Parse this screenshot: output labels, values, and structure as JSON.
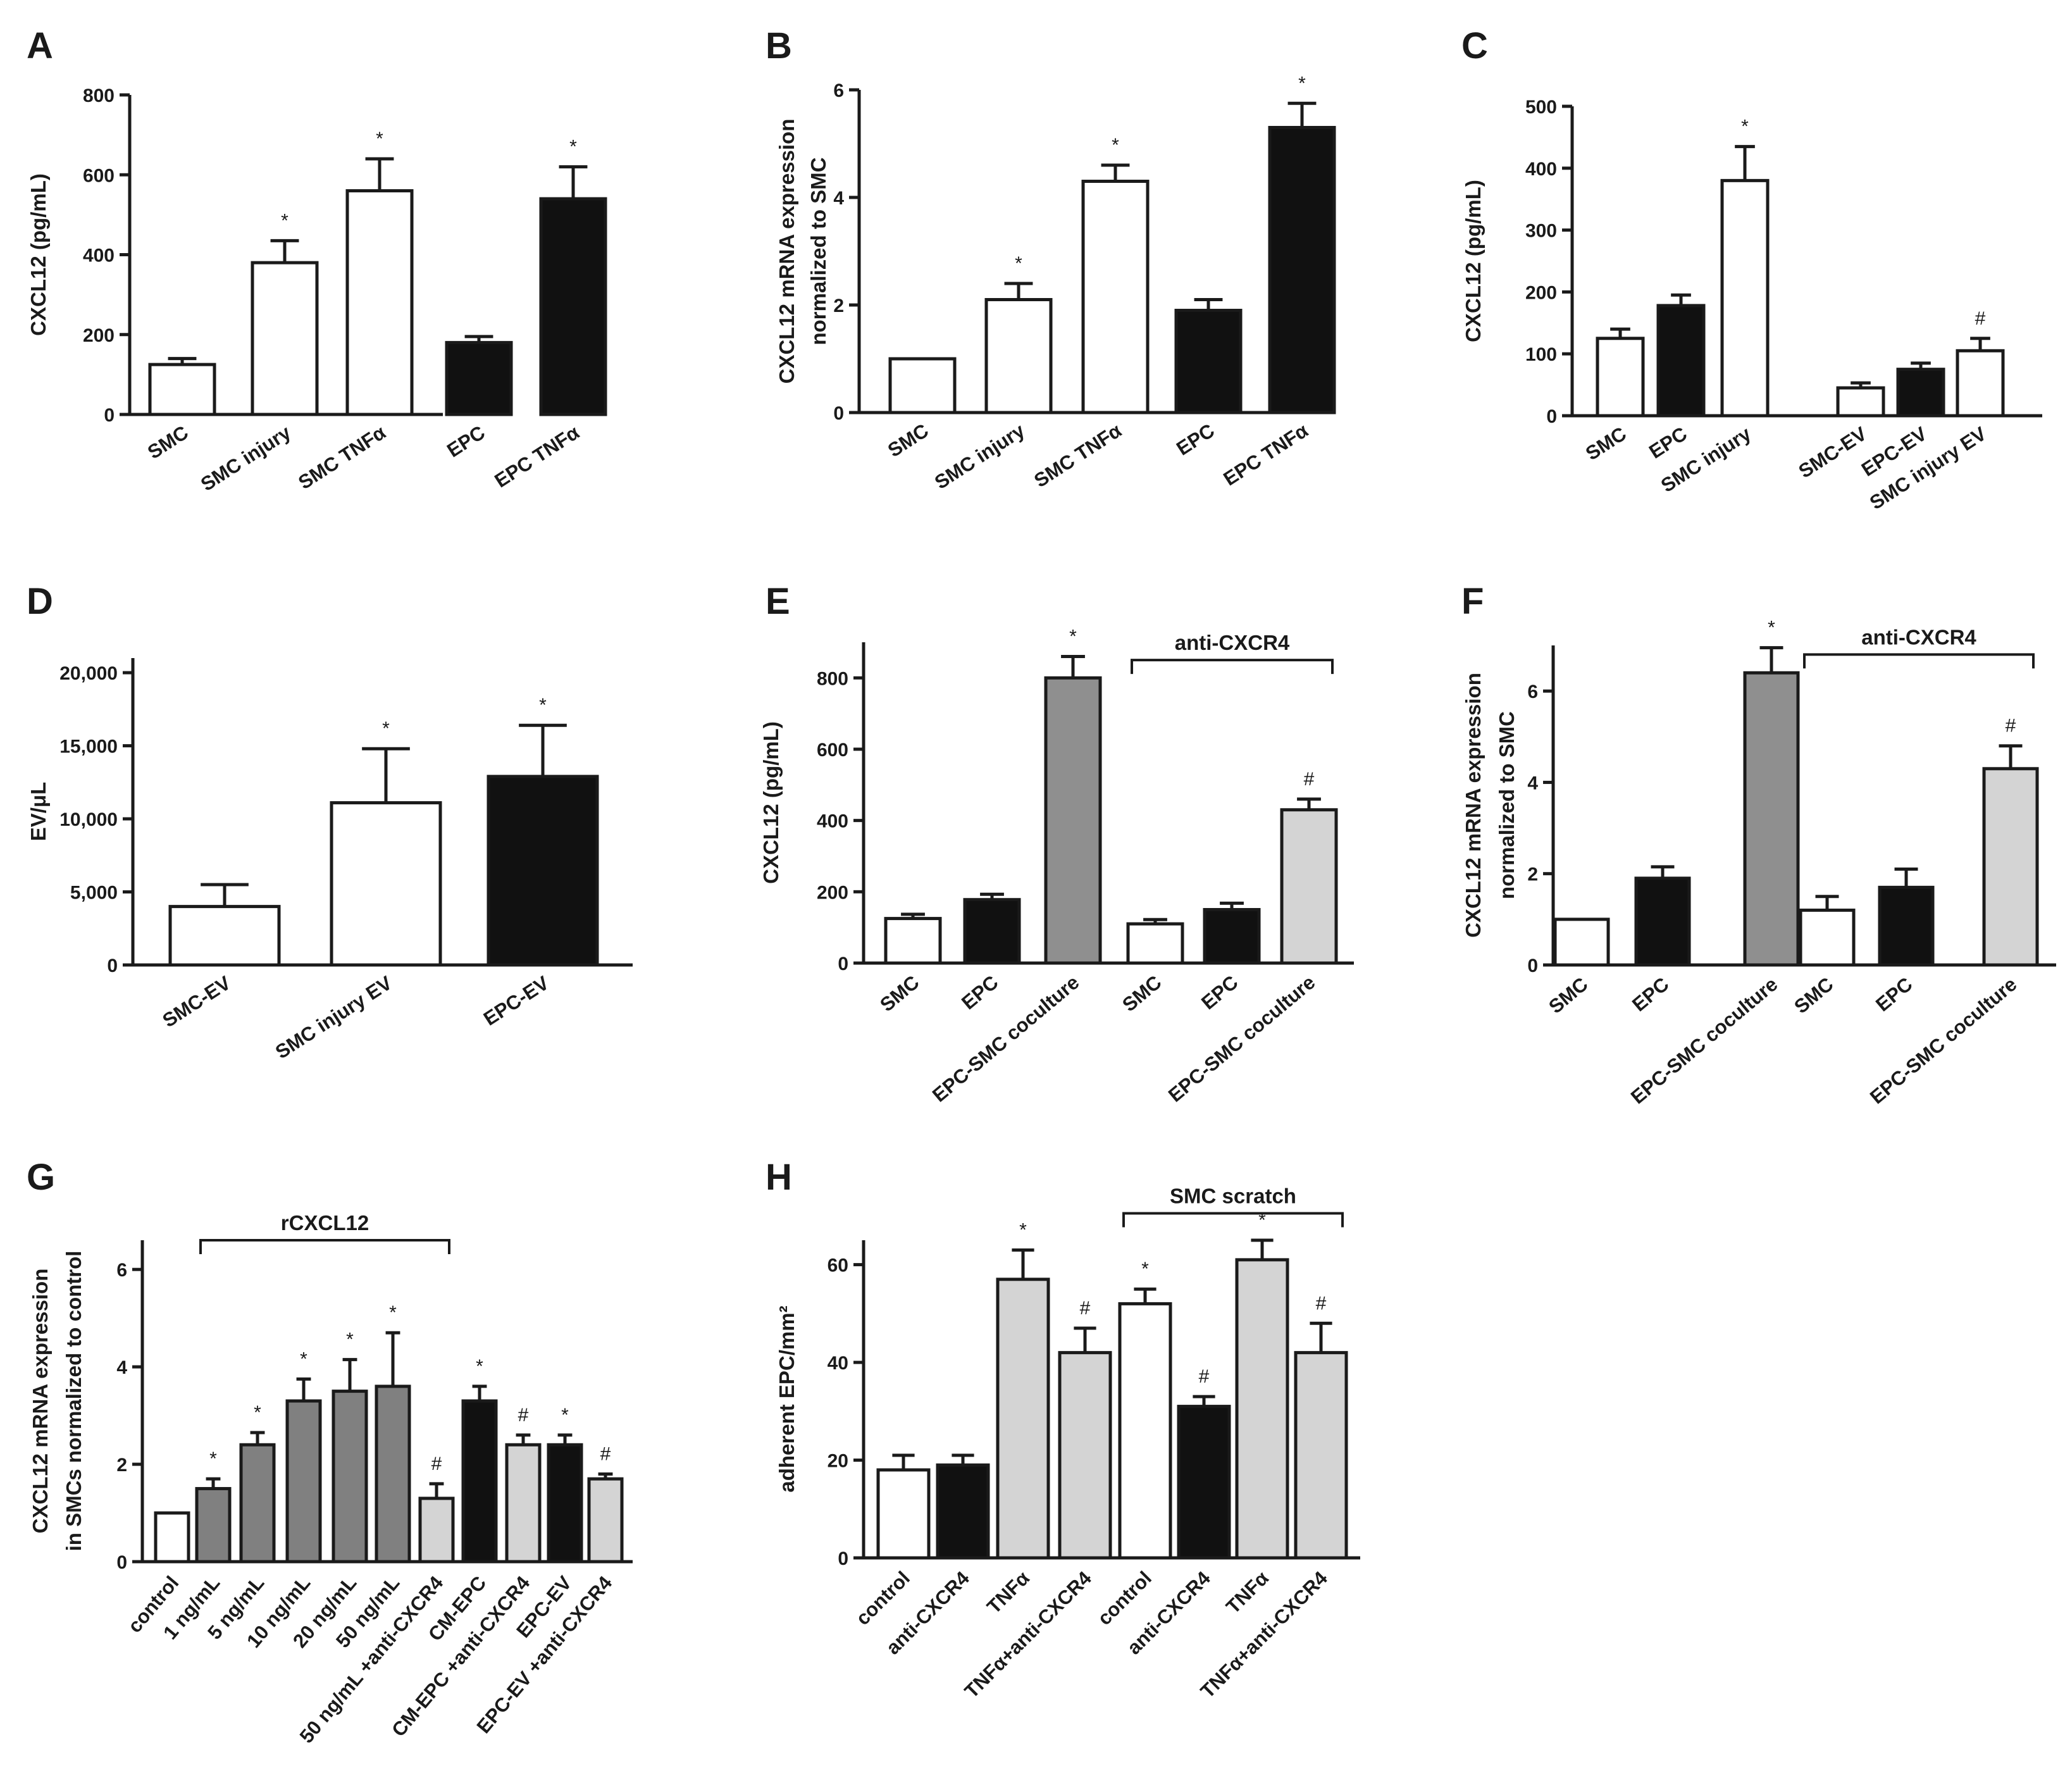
{
  "chart_data": [
    {
      "panel": "A",
      "type": "bar",
      "ylabel": "CXCL12 (pg/mL)",
      "ylim": [
        0,
        800
      ],
      "yticks": [
        0,
        200,
        400,
        600,
        800
      ],
      "categories": [
        "SMC",
        "SMC injury",
        "SMC TNFα",
        "EPC",
        "EPC TNFα"
      ],
      "values": [
        125,
        380,
        560,
        180,
        540
      ],
      "errors": [
        15,
        55,
        80,
        15,
        80
      ],
      "fills": [
        "white",
        "white",
        "white",
        "black",
        "black"
      ],
      "marks": [
        "",
        "*",
        "*",
        "",
        "*"
      ],
      "brackets": []
    },
    {
      "panel": "B",
      "type": "bar",
      "ylabel": [
        "CXCL12 mRNA expression",
        "normalized to SMC"
      ],
      "ylim": [
        0,
        6
      ],
      "yticks": [
        0,
        2,
        4,
        6
      ],
      "categories": [
        "SMC",
        "SMC injury",
        "SMC TNFα",
        "EPC",
        "EPC TNFα"
      ],
      "values": [
        1.0,
        2.1,
        4.3,
        1.9,
        5.3
      ],
      "errors": [
        0,
        0.3,
        0.3,
        0.2,
        0.45
      ],
      "fills": [
        "white",
        "white",
        "white",
        "black",
        "black"
      ],
      "marks": [
        "",
        "*",
        "*",
        "",
        "*"
      ],
      "brackets": []
    },
    {
      "panel": "C",
      "type": "bar",
      "ylabel": "CXCL12 (pg/mL)",
      "ylim": [
        0,
        500
      ],
      "yticks": [
        0,
        100,
        200,
        300,
        400,
        500
      ],
      "categories": [
        "SMC",
        "EPC",
        "SMC injury",
        "SMC-EV",
        "EPC-EV",
        "SMC injury EV"
      ],
      "values": [
        125,
        178,
        380,
        45,
        75,
        105
      ],
      "errors": [
        15,
        17,
        55,
        8,
        10,
        20
      ],
      "fills": [
        "white",
        "black",
        "white",
        "white",
        "black",
        "white"
      ],
      "marks": [
        "",
        "",
        "*",
        "",
        "",
        "#"
      ],
      "brackets": []
    },
    {
      "panel": "D",
      "type": "bar",
      "ylabel": "EV/μL",
      "ylim": [
        0,
        21000
      ],
      "yticks": [
        0,
        5000,
        10000,
        15000,
        20000
      ],
      "ytick_labels": [
        "0",
        "5,000",
        "10,000",
        "15,000",
        "20,000"
      ],
      "categories": [
        "SMC-EV",
        "SMC injury EV",
        "EPC-EV"
      ],
      "values": [
        4000,
        11100,
        12900
      ],
      "errors": [
        1500,
        3700,
        3500
      ],
      "fills": [
        "white",
        "white",
        "black"
      ],
      "marks": [
        "",
        "*",
        "*"
      ],
      "brackets": []
    },
    {
      "panel": "E",
      "type": "bar",
      "ylabel": "CXCL12 (pg/mL)",
      "ylim": [
        0,
        900
      ],
      "yticks": [
        0,
        200,
        400,
        600,
        800
      ],
      "categories": [
        "SMC",
        "EPC",
        "EPC-SMC coculture",
        "SMC",
        "EPC",
        "EPC-SMC coculture"
      ],
      "values": [
        125,
        178,
        800,
        110,
        150,
        430
      ],
      "errors": [
        12,
        15,
        60,
        12,
        18,
        30
      ],
      "fills": [
        "white",
        "black",
        "dark-gray",
        "white",
        "black",
        "light-gray"
      ],
      "marks": [
        "",
        "",
        "*",
        "",
        "",
        "#"
      ],
      "brackets": [
        {
          "label": "anti-CXCR4",
          "from": 3,
          "to": 5,
          "at": 850
        }
      ]
    },
    {
      "panel": "F",
      "type": "bar",
      "ylabel": [
        "CXCL12 mRNA expression",
        "normalized to SMC"
      ],
      "ylim": [
        0,
        7
      ],
      "yticks": [
        0,
        2,
        4,
        6
      ],
      "categories": [
        "SMC",
        "EPC",
        "EPC-SMC coculture",
        "SMC",
        "EPC",
        "EPC-SMC coculture"
      ],
      "values": [
        1.0,
        1.9,
        6.4,
        1.2,
        1.7,
        4.3
      ],
      "errors": [
        0,
        0.25,
        0.55,
        0.3,
        0.4,
        0.5
      ],
      "fills": [
        "white",
        "black",
        "dark-gray",
        "white",
        "black",
        "light-gray"
      ],
      "marks": [
        "",
        "",
        "*",
        "",
        "",
        "#"
      ],
      "brackets": [
        {
          "label": "anti-CXCR4",
          "from": 3,
          "to": 5,
          "at": 6.8
        }
      ]
    },
    {
      "panel": "G",
      "type": "bar",
      "ylabel": [
        "CXCL12 mRNA expression",
        "in SMCs normalized to control"
      ],
      "ylim": [
        0,
        6.6
      ],
      "yticks": [
        0,
        2,
        4,
        6
      ],
      "categories": [
        "control",
        "1 ng/mL",
        "5 ng/mL",
        "10 ng/mL",
        "20 ng/mL",
        "50 ng/mL",
        "50 ng/mL +anti-CXCR4",
        "CM-EPC",
        "CM-EPC +anti-CXCR4",
        "EPC-EV",
        "EPC-EV +anti-CXCR4"
      ],
      "values": [
        1.0,
        1.5,
        2.4,
        3.3,
        3.5,
        3.6,
        1.3,
        3.3,
        2.4,
        2.4,
        1.7
      ],
      "errors": [
        0,
        0.2,
        0.25,
        0.45,
        0.65,
        1.1,
        0.3,
        0.3,
        0.2,
        0.2,
        0.1
      ],
      "fills": [
        "white",
        "mid-gray",
        "mid-gray",
        "mid-gray",
        "mid-gray",
        "mid-gray",
        "light-gray",
        "black",
        "light-gray",
        "black",
        "light-gray"
      ],
      "marks": [
        "",
        "*",
        "*",
        "*",
        "*",
        "*",
        "#",
        "*",
        "#",
        "*",
        "#"
      ],
      "brackets": [
        {
          "label": "rCXCL12",
          "from": 1,
          "to": 6,
          "at": 6.6
        }
      ]
    },
    {
      "panel": "H",
      "type": "bar",
      "ylabel": "adherent EPC/mm²",
      "ylim": [
        0,
        65
      ],
      "yticks": [
        0,
        20,
        40,
        60
      ],
      "categories": [
        "control",
        "anti-CXCR4",
        "TNFα",
        "TNFα+anti-CXCR4",
        "control",
        "anti-CXCR4",
        "TNFα",
        "TNFα+anti-CXCR4"
      ],
      "values": [
        18,
        19,
        57,
        42,
        52,
        31,
        61,
        42
      ],
      "errors": [
        3,
        2,
        6,
        5,
        3,
        2,
        4,
        6
      ],
      "fills": [
        "white",
        "black",
        "light-gray",
        "light-gray",
        "white",
        "black",
        "light-gray",
        "light-gray"
      ],
      "marks": [
        "",
        "",
        "*",
        "#",
        "*",
        "#",
        "*",
        "#"
      ],
      "brackets": [
        {
          "label": "SMC scratch",
          "from": 4,
          "to": 7,
          "at": 70.5
        }
      ]
    }
  ],
  "colors": {
    "ink": "#1a1a1a",
    "white": "#ffffff",
    "black": "#111111",
    "dark-gray": "#8f8f8f",
    "mid-gray": "#808080",
    "light-gray": "#d4d4d4"
  }
}
